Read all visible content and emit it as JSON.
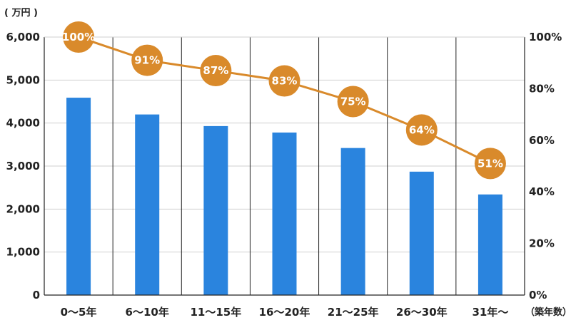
{
  "chart_data": {
    "type": "bar",
    "left_unit": "( 万円 )",
    "right_unit": "（築年数）",
    "categories": [
      "0～5年",
      "6～10年",
      "11～15年",
      "16～20年",
      "21～25年",
      "26～30年",
      "31年～"
    ],
    "ylim": [
      0,
      6000
    ],
    "y_ticks": [
      0,
      1000,
      2000,
      3000,
      4000,
      5000,
      6000
    ],
    "y_tick_labels": [
      "0",
      "1,000",
      "2,000",
      "3,000",
      "4,000",
      "5,000",
      "6,000"
    ],
    "y2lim": [
      0,
      100
    ],
    "y2_ticks": [
      0,
      20,
      40,
      60,
      80,
      100
    ],
    "y2_tick_labels": [
      "0%",
      "20%",
      "40%",
      "60%",
      "80%",
      "100%"
    ],
    "series": [
      {
        "type": "bar",
        "axis": "left",
        "values": [
          4590,
          4200,
          3930,
          3780,
          3420,
          2870,
          2340
        ]
      },
      {
        "type": "line",
        "axis": "right",
        "values": [
          100,
          91,
          87,
          83,
          75,
          64,
          51
        ],
        "labels": [
          "100%",
          "91%",
          "87%",
          "83%",
          "75%",
          "64%",
          "51%"
        ]
      }
    ],
    "grid": true,
    "legend": "none",
    "colors": {
      "bar": "#2a84de",
      "line": "#d98a2b",
      "marker": "#d98a2b",
      "marker_text": "#ffffff"
    }
  }
}
